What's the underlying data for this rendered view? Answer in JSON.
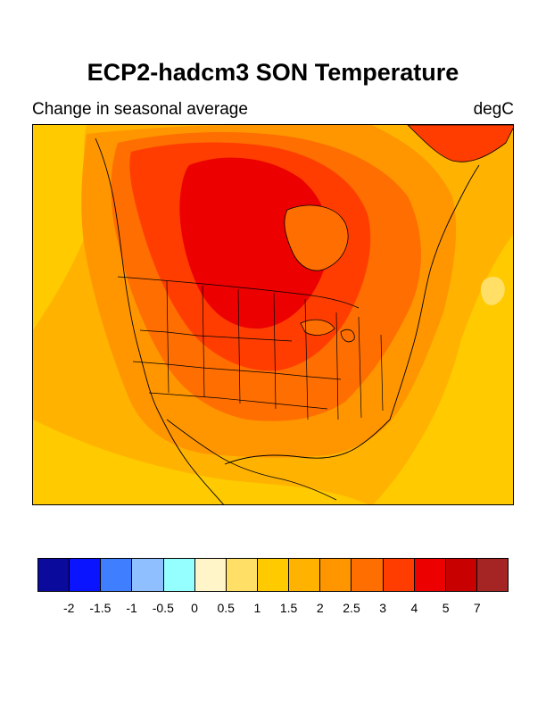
{
  "title": "ECP2-hadcm3 SON Temperature",
  "subtitle": "Change in seasonal average",
  "units": "degC",
  "map": {
    "region": "North America",
    "projection": "Lambert conformal",
    "variable": "Change in seasonal average surface temperature (SON)"
  },
  "colorbar": {
    "colors": [
      "#0a0a9c",
      "#0a14ff",
      "#3f7fff",
      "#8fbfff",
      "#95ffff",
      "#fff5c9",
      "#ffdf66",
      "#ffca00",
      "#ffb300",
      "#ff9600",
      "#ff6e00",
      "#ff3d00",
      "#ec0000",
      "#c80000",
      "#a52525"
    ],
    "labels": [
      "-2",
      "-1.5",
      "-1",
      "-0.5",
      "0",
      "0.5",
      "1",
      "1.5",
      "2",
      "2.5",
      "3",
      "4",
      "5",
      "7"
    ]
  }
}
